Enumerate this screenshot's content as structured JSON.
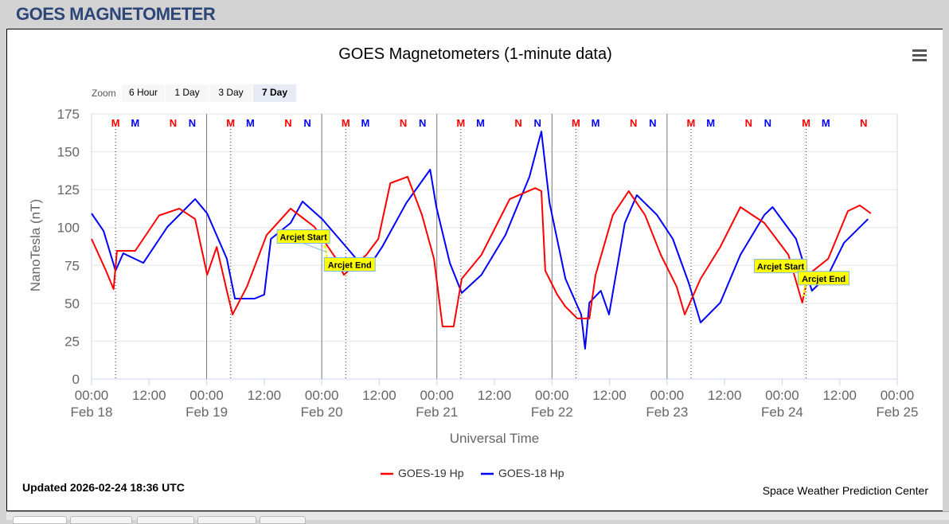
{
  "header": {
    "title": "GOES MAGNETOMETER"
  },
  "chart": {
    "menu_icon": "hamburger-menu-icon",
    "zoom_label": "Zoom",
    "zoom_buttons": [
      {
        "label": "6 Hour",
        "selected": false
      },
      {
        "label": "1 Day",
        "selected": false
      },
      {
        "label": "3 Day",
        "selected": false
      },
      {
        "label": "7 Day",
        "selected": true
      }
    ],
    "updated": "Updated 2026-02-24 18:36 UTC",
    "credit": "Space Weather Prediction Center"
  },
  "chart_data": {
    "type": "line",
    "title": "GOES Magnetometers (1-minute data)",
    "xlabel": "Universal Time",
    "ylabel": "NanoTesla (nT)",
    "ylim": [
      0,
      175
    ],
    "yticks": [
      "0",
      "25",
      "50",
      "75",
      "100",
      "125",
      "150",
      "175"
    ],
    "xlim_hours": [
      0,
      168
    ],
    "xticks": [
      {
        "time": "00:00",
        "date": "Feb 18"
      },
      {
        "time": "12:00",
        "date": ""
      },
      {
        "time": "00:00",
        "date": "Feb 19"
      },
      {
        "time": "12:00",
        "date": ""
      },
      {
        "time": "00:00",
        "date": "Feb 20"
      },
      {
        "time": "12:00",
        "date": ""
      },
      {
        "time": "00:00",
        "date": "Feb 21"
      },
      {
        "time": "12:00",
        "date": ""
      },
      {
        "time": "00:00",
        "date": "Feb 22"
      },
      {
        "time": "12:00",
        "date": ""
      },
      {
        "time": "00:00",
        "date": "Feb 23"
      },
      {
        "time": "12:00",
        "date": ""
      },
      {
        "time": "00:00",
        "date": "Feb 24"
      },
      {
        "time": "12:00",
        "date": ""
      },
      {
        "time": "00:00",
        "date": "Feb 25"
      }
    ],
    "grid": true,
    "legend_position": "bottom-center",
    "day_lines_hours": [
      24,
      48,
      72,
      96,
      120
    ],
    "series": [
      {
        "name": "GOES-19 Hp",
        "color": "#ff0000",
        "points": [
          [
            0,
            92.5
          ],
          [
            3,
            71.5
          ],
          [
            4.6,
            59.4
          ],
          [
            5.3,
            84.6
          ],
          [
            9.1,
            84.6
          ],
          [
            14.1,
            108
          ],
          [
            18.3,
            112.5
          ],
          [
            21.6,
            105.6
          ],
          [
            24.1,
            68.8
          ],
          [
            26.1,
            87.2
          ],
          [
            28.2,
            58.3
          ],
          [
            29.4,
            42.6
          ],
          [
            32.4,
            61
          ],
          [
            36.5,
            95
          ],
          [
            41.5,
            112.5
          ],
          [
            46.5,
            100.4
          ],
          [
            51,
            79.4
          ],
          [
            52.6,
            68.8
          ],
          [
            57.3,
            82
          ],
          [
            59.8,
            92.5
          ],
          [
            62.3,
            129.3
          ],
          [
            65.9,
            133.5
          ],
          [
            68.9,
            108.3
          ],
          [
            71.4,
            79.4
          ],
          [
            73.2,
            34.7
          ],
          [
            75.5,
            34.7
          ],
          [
            77.2,
            66.2
          ],
          [
            81.3,
            82
          ],
          [
            87.2,
            118.8
          ],
          [
            92.5,
            126
          ],
          [
            93.8,
            124
          ],
          [
            94.6,
            71.5
          ],
          [
            97.1,
            55.7
          ],
          [
            98.8,
            47.8
          ],
          [
            101.3,
            40
          ],
          [
            103.8,
            40
          ],
          [
            105.1,
            68.8
          ],
          [
            108.7,
            108.3
          ],
          [
            112,
            124
          ],
          [
            115.4,
            108.3
          ],
          [
            118.7,
            82
          ],
          [
            122,
            61
          ],
          [
            123.7,
            42.6
          ],
          [
            127,
            66.2
          ],
          [
            131.1,
            87.2
          ],
          [
            135.3,
            113.5
          ],
          [
            140.3,
            103
          ],
          [
            145.3,
            82
          ],
          [
            148.2,
            50.4
          ],
          [
            149.4,
            68.8
          ],
          [
            153.6,
            79.4
          ],
          [
            157.7,
            110.9
          ],
          [
            160.2,
            114.6
          ],
          [
            162.5,
            109.3
          ]
        ]
      },
      {
        "name": "GOES-18 Hp",
        "color": "#0000ff",
        "points": [
          [
            0,
            109.3
          ],
          [
            2.5,
            97.7
          ],
          [
            5,
            71.5
          ],
          [
            6.6,
            83
          ],
          [
            10.8,
            76.7
          ],
          [
            15.8,
            100.4
          ],
          [
            21.6,
            118.8
          ],
          [
            24.1,
            109.3
          ],
          [
            28.2,
            79.4
          ],
          [
            29.9,
            53.1
          ],
          [
            34,
            53.1
          ],
          [
            36,
            55.7
          ],
          [
            37.4,
            92.5
          ],
          [
            41.5,
            103
          ],
          [
            44,
            117.2
          ],
          [
            48.1,
            105.6
          ],
          [
            53.1,
            87.2
          ],
          [
            57.3,
            71.5
          ],
          [
            60.6,
            87.2
          ],
          [
            65.6,
            116.1
          ],
          [
            70.6,
            138.2
          ],
          [
            71.9,
            113.5
          ],
          [
            74.7,
            76.7
          ],
          [
            77.2,
            56.8
          ],
          [
            81.3,
            68.8
          ],
          [
            86.3,
            95.1
          ],
          [
            91.3,
            133.5
          ],
          [
            93.8,
            163.4
          ],
          [
            95.5,
            116.1
          ],
          [
            98.8,
            66.2
          ],
          [
            102.1,
            42.6
          ],
          [
            102.9,
            20
          ],
          [
            103.8,
            50.4
          ],
          [
            106.2,
            58.3
          ],
          [
            107.9,
            42.6
          ],
          [
            111.2,
            103
          ],
          [
            113.7,
            121.4
          ],
          [
            117.9,
            108.3
          ],
          [
            121.2,
            92.5
          ],
          [
            124.5,
            63.6
          ],
          [
            127,
            37.3
          ],
          [
            131.1,
            50.4
          ],
          [
            135.3,
            82
          ],
          [
            140.3,
            108.3
          ],
          [
            142,
            113.5
          ],
          [
            146.9,
            92.5
          ],
          [
            150.2,
            58.3
          ],
          [
            153.6,
            68.8
          ],
          [
            156.9,
            89.9
          ],
          [
            161.9,
            105.6
          ]
        ]
      }
    ],
    "markers": [
      {
        "label": "M",
        "color": "#ff0000",
        "hours": [
          5,
          29,
          53,
          77,
          101,
          125,
          149
        ],
        "dotted_line": true
      },
      {
        "label": "M",
        "color": "#0000ff",
        "hours": [
          9.1,
          33.1,
          57.1,
          81.1,
          105.1,
          129.1,
          153.1
        ],
        "dotted_line": false
      },
      {
        "label": "N",
        "color": "#ff0000",
        "hours": [
          17,
          41,
          65,
          89,
          113,
          137,
          161
        ],
        "dotted_line": false
      },
      {
        "label": "N",
        "color": "#0000ff",
        "hours": [
          21,
          45,
          69,
          93,
          117,
          141
        ],
        "dotted_line": false
      }
    ],
    "annotations": [
      {
        "label": "Arcjet Start",
        "hour": 49,
        "value": 88
      },
      {
        "label": "Arcjet End",
        "hour": 51.5,
        "value": 77
      },
      {
        "label": "Arcjet Start",
        "hour": 148.5,
        "value": 78
      },
      {
        "label": "Arcjet End",
        "hour": 150,
        "value": 70
      }
    ]
  }
}
